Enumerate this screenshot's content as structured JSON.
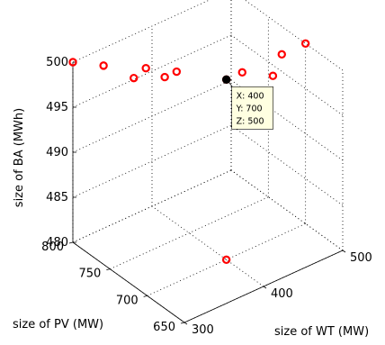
{
  "chart_data": {
    "type": "scatter",
    "title": "",
    "xlabel": "size of WT (MW)",
    "ylabel": "size of PV (MW)",
    "zlabel": "size of BA (MWh)",
    "x_ticks": [
      "300",
      "400",
      "500"
    ],
    "y_ticks": [
      "650",
      "700",
      "750",
      "800"
    ],
    "z_ticks": [
      "480",
      "485",
      "490",
      "495",
      "500"
    ],
    "xlim": [
      300,
      500
    ],
    "ylim": [
      650,
      800
    ],
    "zlim": [
      480,
      500
    ],
    "grid": true,
    "marker_color": "#ff0000",
    "series": [
      {
        "points": [
          {
            "x": 300,
            "y": 800,
            "z": 500
          },
          {
            "x": 320,
            "y": 780,
            "z": 500
          },
          {
            "x": 330,
            "y": 750,
            "z": 500
          },
          {
            "x": 350,
            "y": 755,
            "z": 500
          },
          {
            "x": 355,
            "y": 735,
            "z": 500
          },
          {
            "x": 370,
            "y": 735,
            "z": 500
          },
          {
            "x": 400,
            "y": 700,
            "z": 500
          },
          {
            "x": 420,
            "y": 700,
            "z": 500
          },
          {
            "x": 440,
            "y": 680,
            "z": 500
          },
          {
            "x": 470,
            "y": 700,
            "z": 500
          },
          {
            "x": 500,
            "y": 700,
            "z": 500
          },
          {
            "x": 400,
            "y": 700,
            "z": 480
          }
        ]
      }
    ],
    "datatip": {
      "lines": [
        "X: 400",
        "Y: 700",
        "Z: 500"
      ],
      "point": {
        "x": 400,
        "y": 700,
        "z": 500
      }
    }
  }
}
